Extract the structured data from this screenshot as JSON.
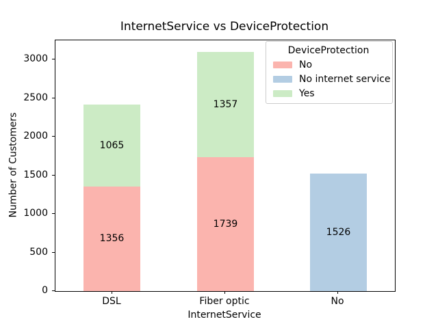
{
  "chart_data": {
    "type": "bar",
    "stacked": true,
    "title": "InternetService vs DeviceProtection",
    "xlabel": "InternetService",
    "ylabel": "Number of Customers",
    "categories": [
      "DSL",
      "Fiber optic",
      "No"
    ],
    "series": [
      {
        "name": "No",
        "color": "#fbb4ae",
        "values": [
          1356,
          1739,
          0
        ]
      },
      {
        "name": "No internet service",
        "color": "#b3cde3",
        "values": [
          0,
          0,
          1526
        ]
      },
      {
        "name": "Yes",
        "color": "#ccebc5",
        "values": [
          1065,
          1357,
          0
        ]
      }
    ],
    "ylim": [
      0,
      3250
    ],
    "yticks": [
      0,
      500,
      1000,
      1500,
      2000,
      2500,
      3000
    ],
    "bar_labels": true,
    "grid": false,
    "legend": {
      "title": "DeviceProtection",
      "position": "upper right",
      "entries": [
        "No",
        "No internet service",
        "Yes"
      ]
    }
  }
}
